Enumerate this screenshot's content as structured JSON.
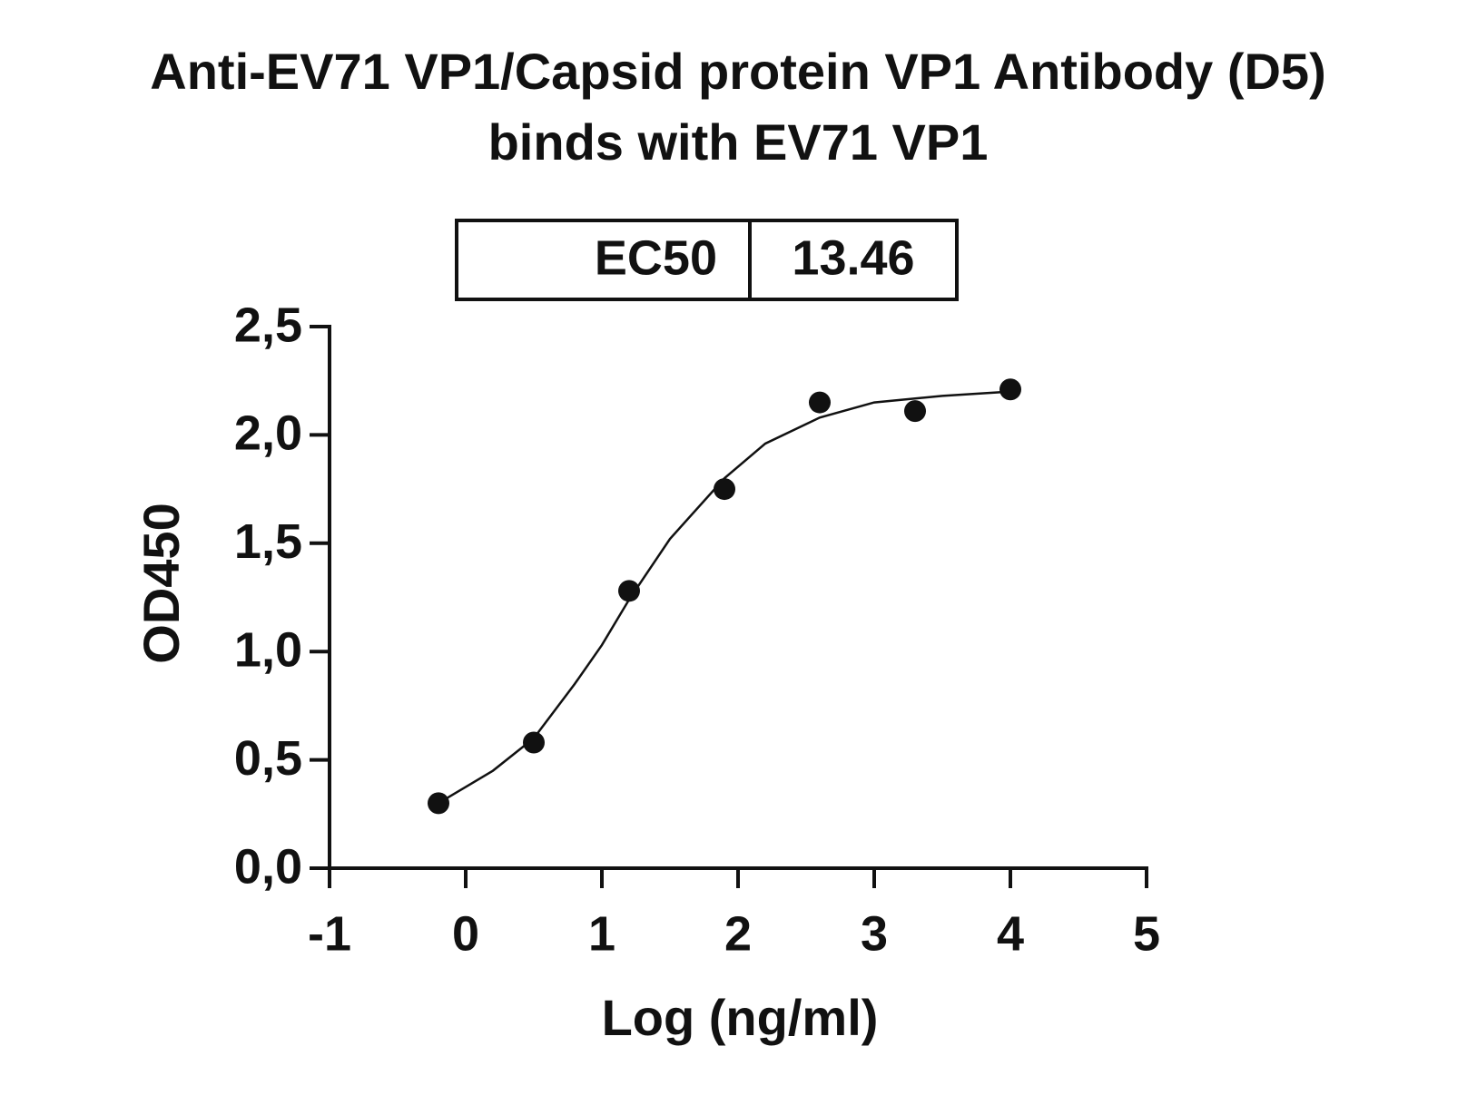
{
  "chart_data": {
    "type": "scatter",
    "title": [
      "Anti-EV71 VP1/Capsid protein VP1 Antibody (D5)",
      "binds with EV71 VP1"
    ],
    "ec50_table": {
      "label": "EC50",
      "value": 13.46
    },
    "x_label": "Log (ng/ml)",
    "y_label": "OD450",
    "color": "#111111",
    "x": [
      -0.2,
      0.5,
      1.2,
      1.9,
      2.6,
      3.3,
      4.0
    ],
    "values": [
      0.3,
      0.58,
      1.28,
      1.75,
      2.15,
      2.11,
      2.21
    ],
    "fit": {
      "x": [
        -0.2,
        0.2,
        0.5,
        0.8,
        1.0,
        1.2,
        1.5,
        1.9,
        2.2,
        2.6,
        3.0,
        3.5,
        4.0
      ],
      "values": [
        0.3,
        0.45,
        0.6,
        0.85,
        1.03,
        1.24,
        1.52,
        1.8,
        1.96,
        2.08,
        2.15,
        2.18,
        2.2
      ]
    },
    "xlim": [
      -1,
      5
    ],
    "xticks": [
      -1,
      0,
      1,
      2,
      3,
      4,
      5
    ],
    "ylim": [
      0,
      2.5
    ],
    "yticks": [
      {
        "value": 0,
        "label": "0,0"
      },
      {
        "value": 0.5,
        "label": "0,5"
      },
      {
        "value": 1,
        "label": "1,0"
      },
      {
        "value": 1.5,
        "label": "1,5"
      },
      {
        "value": 2,
        "label": "2,0"
      },
      {
        "value": 2.5,
        "label": "2,5"
      }
    ]
  }
}
